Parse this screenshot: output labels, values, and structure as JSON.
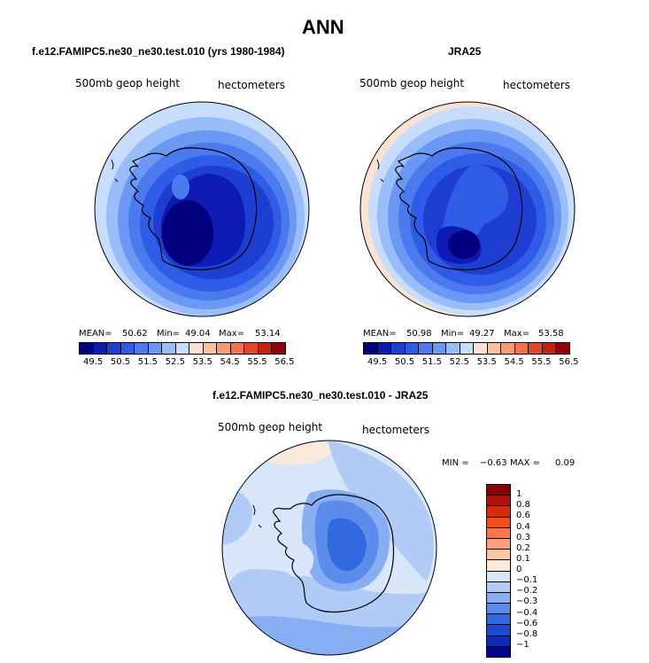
{
  "main_title": "ANN",
  "panels": {
    "left": {
      "title": "f.e12.FAMIPC5.ne30_ne30.test.010 (yrs 1980-1984)",
      "variable": "500mb geop height",
      "units": "hectometers",
      "mean_label": "MEAN=",
      "mean": "50.62",
      "min_label": "Min=",
      "min": "49.04",
      "max_label": "Max=",
      "max": "53.14"
    },
    "right": {
      "title": "JRA25",
      "variable": "500mb geop height",
      "units": "hectometers",
      "mean_label": "MEAN=",
      "mean": "50.98",
      "min_label": "Min=",
      "min": "49.27",
      "max_label": "Max=",
      "max": "53.58"
    },
    "diff": {
      "title": "f.e12.FAMIPC5.ne30_ne30.test.010 - JRA25",
      "variable": "500mb geop height",
      "units": "hectometers",
      "min_label": "MIN =",
      "min": "−0.63",
      "max_label": "MAX =",
      "max": "0.09"
    }
  },
  "colorbar_top": {
    "colors": [
      "#02007e",
      "#0e1ab4",
      "#1e3ed2",
      "#2f5ce6",
      "#4a7aee",
      "#6b98f4",
      "#99bdf8",
      "#c8dcfb",
      "#fbe3d3",
      "#fcc0a0",
      "#fa9a71",
      "#f4724b",
      "#e2462a",
      "#c22313",
      "#92000a"
    ],
    "tick_labels": [
      "49.5",
      "50.5",
      "51.5",
      "52.5",
      "53.5",
      "54.5",
      "55.5",
      "56.5"
    ]
  },
  "colorbar_diff": {
    "colors": [
      "#8a0007",
      "#b31108",
      "#d9280c",
      "#f44b1c",
      "#fa774a",
      "#fca07a",
      "#fdc6a8",
      "#fde8dc",
      "#d8e6fa",
      "#b0ccf6",
      "#86aef2",
      "#5b8ceb",
      "#3268e0",
      "#1c4ad2",
      "#0b2cba",
      "#01068a"
    ],
    "tick_labels": [
      "1",
      "0.8",
      "0.6",
      "0.4",
      "0.3",
      "0.2",
      "0.1",
      "0",
      "−0.1",
      "−0.2",
      "−0.3",
      "−0.4",
      "−0.6",
      "−0.8",
      "−1"
    ]
  },
  "map_colors": {
    "model": [
      "#c8dcfb",
      "#99bdf8",
      "#6b98f4",
      "#4a7aee",
      "#2f5ce6",
      "#1e3ed2",
      "#0e1ab4",
      "#02007e"
    ],
    "obs": [
      "#fbe3d3",
      "#c8dcfb",
      "#99bdf8",
      "#6b98f4",
      "#4a7aee",
      "#2f5ce6",
      "#1e3ed2",
      "#0e1ab4",
      "#02007e"
    ],
    "diff_bg": "#d8e6fa",
    "diff_light": "#b0ccf6",
    "diff_mid": "#86aef2",
    "diff_dark": "#5b8ceb",
    "diff_darker": "#3268e0",
    "diff_pos": "#fde8dc"
  },
  "icons": {
    "coastline": "antarctica-coastline"
  }
}
